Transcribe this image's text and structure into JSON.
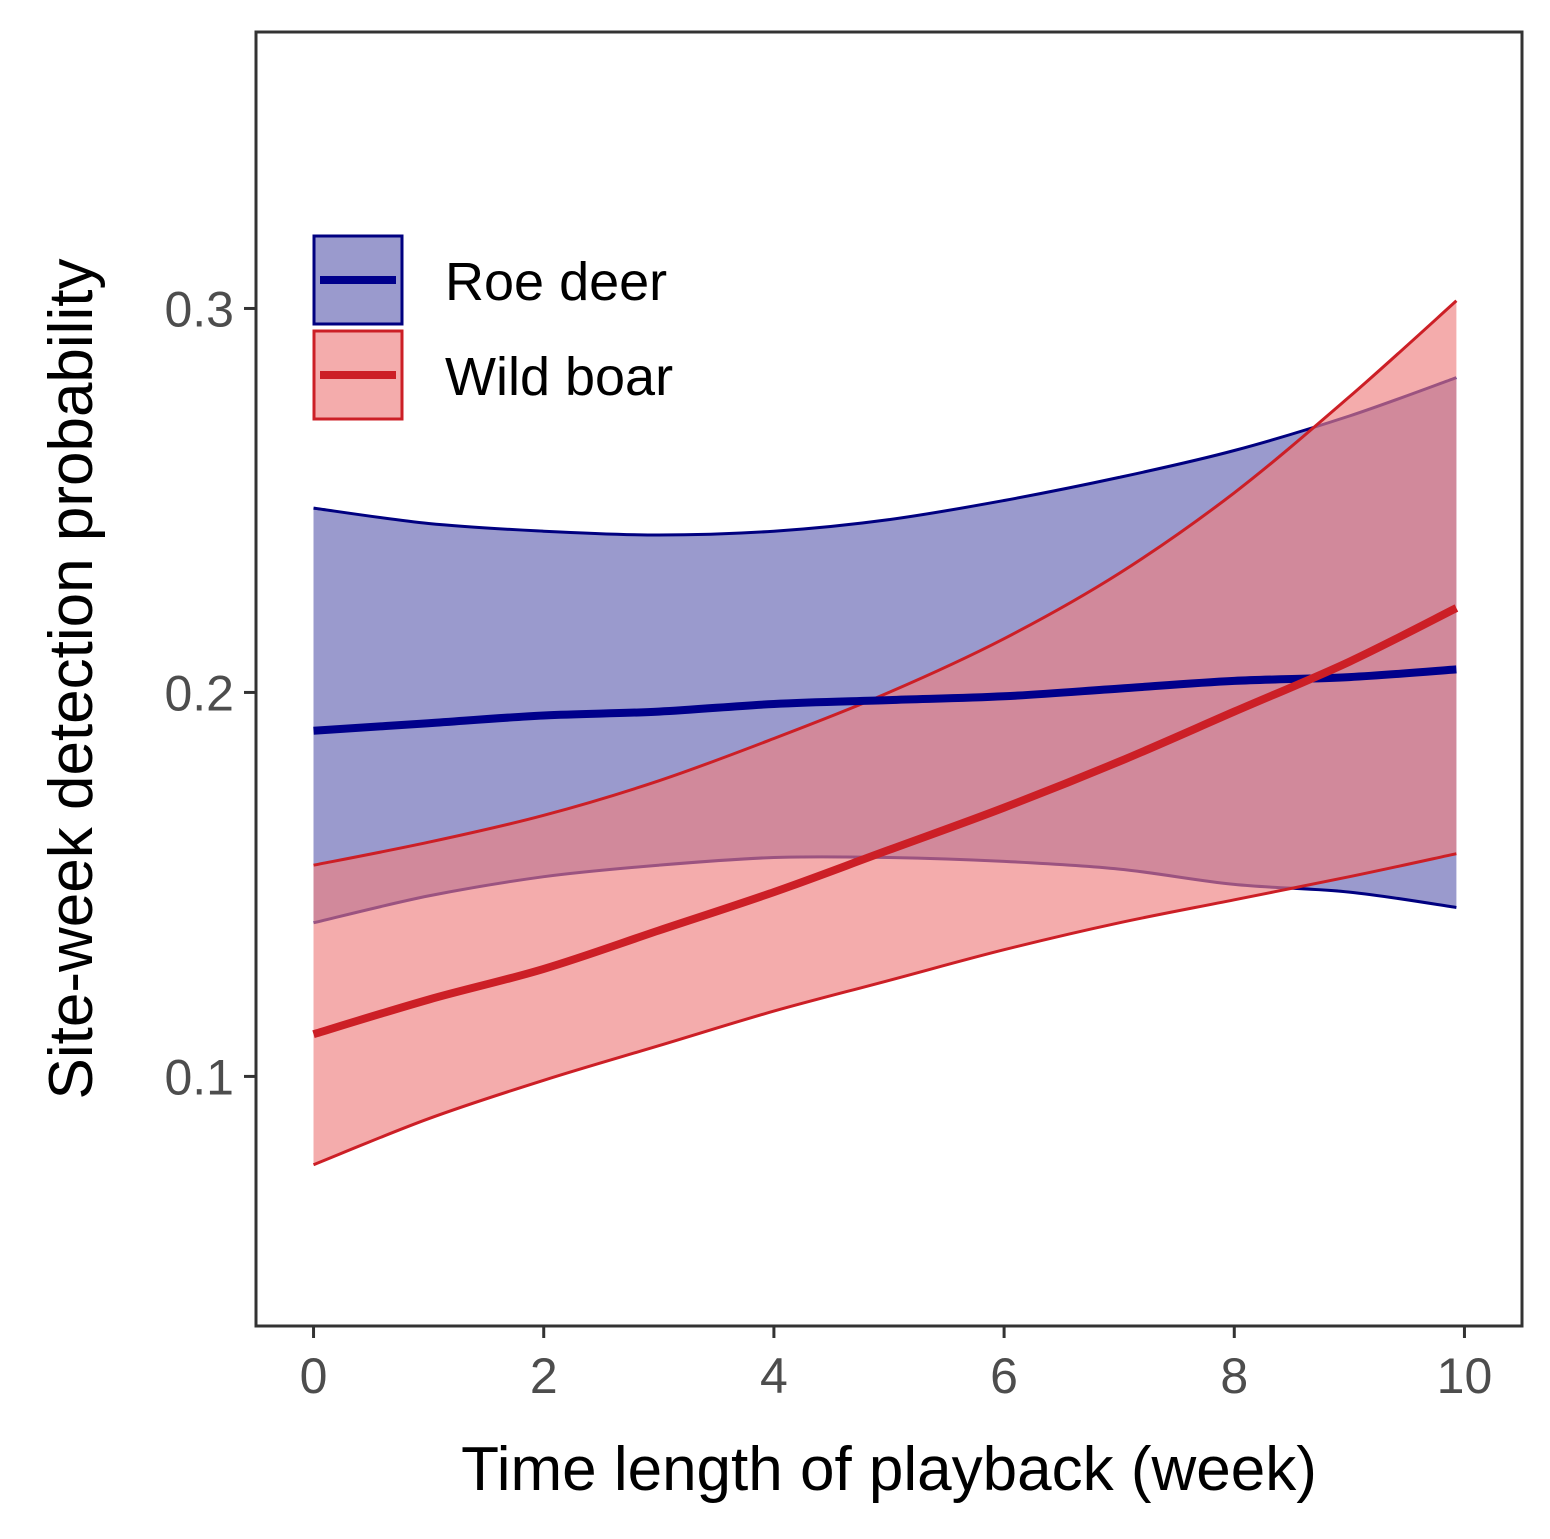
{
  "chart_data": {
    "type": "line",
    "title": "",
    "xlabel": "Time length of playback (week)",
    "ylabel": "Site-week detection probability",
    "xlim": [
      -0.5,
      10.5
    ],
    "ylim": [
      0.035,
      0.372
    ],
    "xticks": [
      0,
      2,
      4,
      6,
      8,
      10
    ],
    "xtick_labels": [
      "0",
      "2",
      "4",
      "6",
      "8",
      "10"
    ],
    "yticks": [
      0.1,
      0.2,
      0.3
    ],
    "ytick_labels": [
      "0.1",
      "0.2",
      "0.3"
    ],
    "grid": false,
    "legend_position": "top-left",
    "x": [
      0,
      1,
      2,
      3,
      4,
      5,
      6,
      7,
      8,
      9,
      9.93
    ],
    "series": [
      {
        "name": "Roe deer",
        "line_color": "#00008B",
        "fill_color": "#9A9ACD",
        "fill_stroke": "#000080",
        "values": [
          0.19,
          0.192,
          0.194,
          0.195,
          0.197,
          0.198,
          0.199,
          0.201,
          0.203,
          0.204,
          0.206
        ],
        "upper": [
          0.248,
          0.244,
          0.242,
          0.241,
          0.242,
          0.245,
          0.25,
          0.256,
          0.263,
          0.272,
          0.282
        ],
        "lower": [
          0.14,
          0.147,
          0.152,
          0.155,
          0.157,
          0.157,
          0.156,
          0.154,
          0.15,
          0.148,
          0.144
        ]
      },
      {
        "name": "Wild boar",
        "line_color": "#CC1F26",
        "fill_color": "#EE7F7F",
        "fill_opacity": 0.65,
        "fill_stroke": "#CC1F26",
        "values": [
          0.111,
          0.12,
          0.128,
          0.138,
          0.148,
          0.159,
          0.17,
          0.182,
          0.195,
          0.208,
          0.222
        ],
        "upper": [
          0.155,
          0.161,
          0.168,
          0.177,
          0.188,
          0.2,
          0.214,
          0.231,
          0.252,
          0.277,
          0.302
        ],
        "lower": [
          0.077,
          0.089,
          0.099,
          0.108,
          0.117,
          0.125,
          0.133,
          0.14,
          0.146,
          0.152,
          0.158
        ]
      }
    ]
  }
}
